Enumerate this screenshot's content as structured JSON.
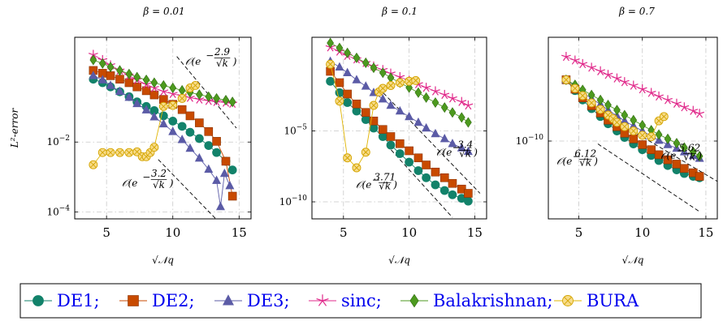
{
  "chart_data": [
    {
      "type": "line",
      "title": "β = 0.01",
      "xlabel": "√𝒩q",
      "ylabel": "L²-error",
      "xlim": [
        2.6,
        15.9
      ],
      "ylim_log10": [
        -4.2,
        1.0
      ],
      "xticks": [
        5,
        10,
        15
      ],
      "yticks": [
        {
          "exp": -2,
          "label": "10"
        },
        {
          "exp": -4,
          "label": "10"
        }
      ],
      "yscale": "log",
      "grid": true,
      "series": [
        {
          "name": "DE1",
          "x": [
            4,
            4.7,
            5.3,
            6,
            6.7,
            7.3,
            8,
            8.6,
            9.3,
            10,
            10.7,
            11.3,
            12,
            12.7,
            13.3,
            14,
            14.5
          ],
          "y_log10": [
            -0.2,
            -0.3,
            -0.42,
            -0.56,
            -0.7,
            -0.85,
            -0.98,
            -1.1,
            -1.25,
            -1.4,
            -1.55,
            -1.72,
            -1.9,
            -2.1,
            -2.3,
            -2.55,
            -2.8
          ]
        },
        {
          "name": "DE2",
          "x": [
            4,
            4.7,
            5.3,
            6,
            6.7,
            7.3,
            8,
            8.6,
            9.3,
            10,
            10.7,
            11.3,
            12,
            12.7,
            13.3,
            14,
            14.5
          ],
          "y_log10": [
            0.05,
            -0.03,
            -0.1,
            -0.2,
            -0.3,
            -0.42,
            -0.53,
            -0.65,
            -0.78,
            -0.92,
            -1.07,
            -1.25,
            -1.45,
            -1.7,
            -1.98,
            -2.55,
            -3.55
          ]
        },
        {
          "name": "DE3",
          "x": [
            4,
            4.7,
            5.3,
            6,
            6.7,
            7.3,
            8,
            8.6,
            9.3,
            10,
            10.7,
            11.3,
            12,
            12.7,
            13.3,
            13.6,
            13.9,
            14.3
          ],
          "y_log10": [
            -0.1,
            -0.22,
            -0.38,
            -0.55,
            -0.72,
            -0.9,
            -1.08,
            -1.28,
            -1.48,
            -1.7,
            -1.93,
            -2.18,
            -2.46,
            -2.78,
            -3.1,
            -3.85,
            -2.9,
            -3.25
          ]
        },
        {
          "name": "sinc",
          "x": [
            4,
            4.7,
            5.3,
            6,
            6.7,
            7.3,
            8,
            8.6,
            9.3,
            10,
            10.7,
            11.3,
            12,
            12.7,
            13.3,
            14,
            14.5
          ],
          "y_log10": [
            0.5,
            0.35,
            0.2,
            0.05,
            -0.1,
            -0.22,
            -0.35,
            -0.45,
            -0.55,
            -0.62,
            -0.68,
            -0.73,
            -0.78,
            -0.82,
            -0.85,
            -0.87,
            -0.9
          ]
        },
        {
          "name": "Balakrishnan",
          "x": [
            4,
            4.7,
            5.3,
            6,
            6.7,
            7.3,
            8,
            8.6,
            9.3,
            10,
            10.7,
            11.3,
            12,
            12.7,
            13.3,
            14,
            14.5
          ],
          "y_log10": [
            0.35,
            0.25,
            0.15,
            0.05,
            -0.05,
            -0.14,
            -0.22,
            -0.3,
            -0.38,
            -0.45,
            -0.52,
            -0.58,
            -0.64,
            -0.7,
            -0.75,
            -0.8,
            -0.85
          ]
        },
        {
          "name": "BURA",
          "x": [
            4,
            4.7,
            5.3,
            6,
            6.7,
            7.3,
            7.7,
            8,
            8.3,
            8.6,
            9.3,
            10,
            10.7,
            11.3,
            11.7
          ],
          "y_log10": [
            -2.65,
            -2.3,
            -2.3,
            -2.3,
            -2.3,
            -2.28,
            -2.42,
            -2.42,
            -2.3,
            -2.15,
            -0.98,
            -0.95,
            -0.75,
            -0.45,
            -0.38
          ]
        }
      ],
      "guides": [
        {
          "label": "𝒪(e^{−2.9/√k})",
          "x": [
            10.3,
            14.8
          ],
          "y_log10": [
            0.45,
            -1.6
          ]
        },
        {
          "label": "𝒪(e^{−3.2/√k})",
          "x": [
            8.9,
            13.5
          ],
          "y_log10": [
            -2.5,
            -4.3
          ]
        }
      ]
    },
    {
      "type": "line",
      "title": "β = 0.1",
      "xlabel": "√𝒩q",
      "ylabel": "",
      "xlim": [
        2.6,
        15.9
      ],
      "ylim_log10": [
        -11.2,
        1.6
      ],
      "xticks": [
        5,
        10,
        15
      ],
      "yticks": [
        {
          "exp": -5,
          "label": "10"
        },
        {
          "exp": -10,
          "label": "10"
        }
      ],
      "yscale": "log",
      "grid": true,
      "series": [
        {
          "name": "DE1",
          "x": [
            4,
            4.7,
            5.3,
            6,
            6.7,
            7.3,
            8,
            8.6,
            9.3,
            10,
            10.7,
            11.3,
            12,
            12.7,
            13.3,
            14,
            14.5
          ],
          "y_log10": [
            -1.5,
            -2.3,
            -3.0,
            -3.6,
            -4.2,
            -4.8,
            -5.4,
            -6.0,
            -6.6,
            -7.2,
            -7.8,
            -8.3,
            -8.8,
            -9.2,
            -9.5,
            -9.75,
            -9.95
          ]
        },
        {
          "name": "DE2",
          "x": [
            4,
            4.7,
            5.3,
            6,
            6.7,
            7.3,
            8,
            8.6,
            9.3,
            10,
            10.7,
            11.3,
            12,
            12.7,
            13.3,
            14,
            14.5
          ],
          "y_log10": [
            -0.8,
            -1.6,
            -2.4,
            -3.1,
            -3.7,
            -4.3,
            -4.9,
            -5.4,
            -5.9,
            -6.4,
            -6.9,
            -7.4,
            -7.9,
            -8.3,
            -8.7,
            -9.1,
            -9.4
          ]
        },
        {
          "name": "DE3",
          "x": [
            4,
            4.7,
            5.3,
            6,
            6.7,
            7.3,
            8,
            8.6,
            9.3,
            10,
            10.7,
            11.3,
            12,
            12.7,
            13.3,
            14,
            14.5
          ],
          "y_log10": [
            -0.1,
            -0.5,
            -0.9,
            -1.4,
            -1.85,
            -2.3,
            -2.75,
            -3.2,
            -3.6,
            -4.0,
            -4.4,
            -4.8,
            -5.2,
            -5.55,
            -5.9,
            -6.2,
            -6.45
          ]
        },
        {
          "name": "sinc",
          "x": [
            4,
            4.7,
            5.3,
            6,
            6.7,
            7.3,
            8,
            8.6,
            9.3,
            10,
            10.7,
            11.3,
            12,
            12.7,
            13.3,
            14,
            14.5
          ],
          "y_log10": [
            0.9,
            0.6,
            0.3,
            0.05,
            -0.2,
            -0.45,
            -0.7,
            -0.95,
            -1.2,
            -1.45,
            -1.7,
            -1.95,
            -2.2,
            -2.45,
            -2.7,
            -2.95,
            -3.2
          ]
        },
        {
          "name": "Balakrishnan",
          "x": [
            4,
            4.7,
            5.3,
            6,
            6.7,
            7.3,
            8,
            8.6,
            9.3,
            10,
            10.7,
            11.3,
            12,
            12.7,
            13.3,
            14,
            14.5
          ],
          "y_log10": [
            1.2,
            0.85,
            0.5,
            0.15,
            -0.2,
            -0.55,
            -0.9,
            -1.25,
            -1.6,
            -1.95,
            -2.3,
            -2.65,
            -3.0,
            -3.35,
            -3.7,
            -4.05,
            -4.4
          ]
        },
        {
          "name": "BURA",
          "x": [
            4,
            4.7,
            5.3,
            6,
            6.7,
            7.3,
            7.7,
            8,
            8.6,
            9.3,
            10,
            10.5
          ],
          "y_log10": [
            -0.3,
            -2.9,
            -6.9,
            -7.6,
            -6.5,
            -3.2,
            -2.25,
            -2.0,
            -1.8,
            -1.6,
            -1.5,
            -1.45
          ]
        }
      ],
      "guides": [
        {
          "label": "𝒪(e^{−3.4/√k})",
          "x": [
            7.7,
            15.4
          ],
          "y_log10": [
            -2.0,
            -9.4
          ]
        },
        {
          "label": "𝒪(e^{−3.71/√k})",
          "x": [
            8.3,
            13.3
          ],
          "y_log10": [
            -6.0,
            -11.1
          ]
        }
      ]
    },
    {
      "type": "line",
      "title": "β = 0.7",
      "xlabel": "√𝒩q",
      "ylabel": "",
      "xlim": [
        2.6,
        15.9
      ],
      "ylim_log10": [
        -20.8,
        4.4
      ],
      "xticks": [
        5,
        10,
        15
      ],
      "yticks": [
        {
          "exp": -10,
          "label": "10"
        }
      ],
      "yscale": "log",
      "grid": true,
      "series": [
        {
          "name": "DE1",
          "x": [
            4,
            4.7,
            5.3,
            6,
            6.7,
            7.3,
            8,
            8.6,
            9.3,
            10,
            10.7,
            11.3,
            12,
            12.7,
            13.3,
            14,
            14.5
          ],
          "y_log10": [
            -1.5,
            -3.0,
            -4.3,
            -5.5,
            -6.6,
            -7.6,
            -8.6,
            -9.5,
            -10.4,
            -11.2,
            -12.0,
            -12.7,
            -13.4,
            -14.0,
            -14.5,
            -14.9,
            -15.1
          ]
        },
        {
          "name": "DE2",
          "x": [
            4,
            4.7,
            5.3,
            6,
            6.7,
            7.3,
            8,
            8.6,
            9.3,
            10,
            10.7,
            11.3,
            12,
            12.7,
            13.3,
            14,
            14.5
          ],
          "y_log10": [
            -1.5,
            -2.8,
            -4.0,
            -5.1,
            -6.1,
            -7.1,
            -8.0,
            -8.9,
            -9.7,
            -10.5,
            -11.2,
            -11.9,
            -12.6,
            -13.2,
            -13.8,
            -14.4,
            -14.9
          ]
        },
        {
          "name": "DE3",
          "x": [
            4,
            4.7,
            5.3,
            6,
            6.7,
            7.3,
            8,
            8.6,
            9.3,
            10,
            10.7,
            11.3,
            12,
            12.7,
            13.3,
            14,
            14.5
          ],
          "y_log10": [
            -1.5,
            -2.4,
            -3.3,
            -4.1,
            -4.9,
            -5.7,
            -6.5,
            -7.2,
            -7.9,
            -8.6,
            -9.3,
            -9.9,
            -10.5,
            -11.0,
            -11.5,
            -12.0,
            -12.4
          ]
        },
        {
          "name": "sinc",
          "x": [
            4,
            4.7,
            5.3,
            6,
            6.7,
            7.3,
            8,
            8.6,
            9.3,
            10,
            10.7,
            11.3,
            12,
            12.7,
            13.3,
            14,
            14.5
          ],
          "y_log10": [
            1.7,
            1.2,
            0.7,
            0.2,
            -0.3,
            -0.8,
            -1.3,
            -1.8,
            -2.3,
            -2.8,
            -3.3,
            -3.8,
            -4.3,
            -4.8,
            -5.3,
            -5.8,
            -6.2
          ]
        },
        {
          "name": "Balakrishnan",
          "x": [
            4,
            4.7,
            5.3,
            6,
            6.7,
            7.3,
            8,
            8.6,
            9.3,
            10,
            10.7,
            11.3,
            12,
            12.7,
            13.3,
            14,
            14.5
          ],
          "y_log10": [
            -1.5,
            -2.2,
            -2.9,
            -3.6,
            -4.3,
            -5.0,
            -5.7,
            -6.4,
            -7.1,
            -7.8,
            -8.5,
            -9.1,
            -9.7,
            -10.3,
            -10.9,
            -11.5,
            -12.1
          ]
        },
        {
          "name": "BURA",
          "x": [
            4,
            4.7,
            5.3,
            6,
            6.7,
            7.3,
            7.7,
            8,
            8.6,
            9.3,
            10,
            10.7,
            11.3,
            11.7
          ],
          "y_log10": [
            -1.5,
            -2.7,
            -3.7,
            -4.7,
            -5.6,
            -6.4,
            -6.9,
            -7.4,
            -8.0,
            -8.6,
            -9.2,
            -9.4,
            -7.2,
            -6.6
          ]
        }
      ],
      "guides": [
        {
          "label": "𝒪(e^{−5.62/√k})",
          "x": [
            9.6,
            18
          ],
          "y_log10": [
            -9.0,
            -17.8
          ]
        },
        {
          "label": "𝒪(e^{−6.12/√k})",
          "x": [
            6.5,
            14.5
          ],
          "y_log10": [
            -10.4,
            -19.8
          ]
        }
      ]
    }
  ],
  "legend": {
    "items": [
      {
        "label": "DE1;",
        "color": "#12826a",
        "marker": "circle"
      },
      {
        "label": "DE2;",
        "color": "#c84a00",
        "marker": "square"
      },
      {
        "label": "DE3;",
        "color": "#5b5ba6",
        "marker": "triangle"
      },
      {
        "label": "sinc;",
        "color": "#e0288a",
        "marker": "star"
      },
      {
        "label": "Balakrishnan;",
        "color": "#4d9a1f",
        "marker": "diamond"
      },
      {
        "label": "BURA",
        "color": "#e0b400",
        "marker": "otimes"
      }
    ]
  }
}
